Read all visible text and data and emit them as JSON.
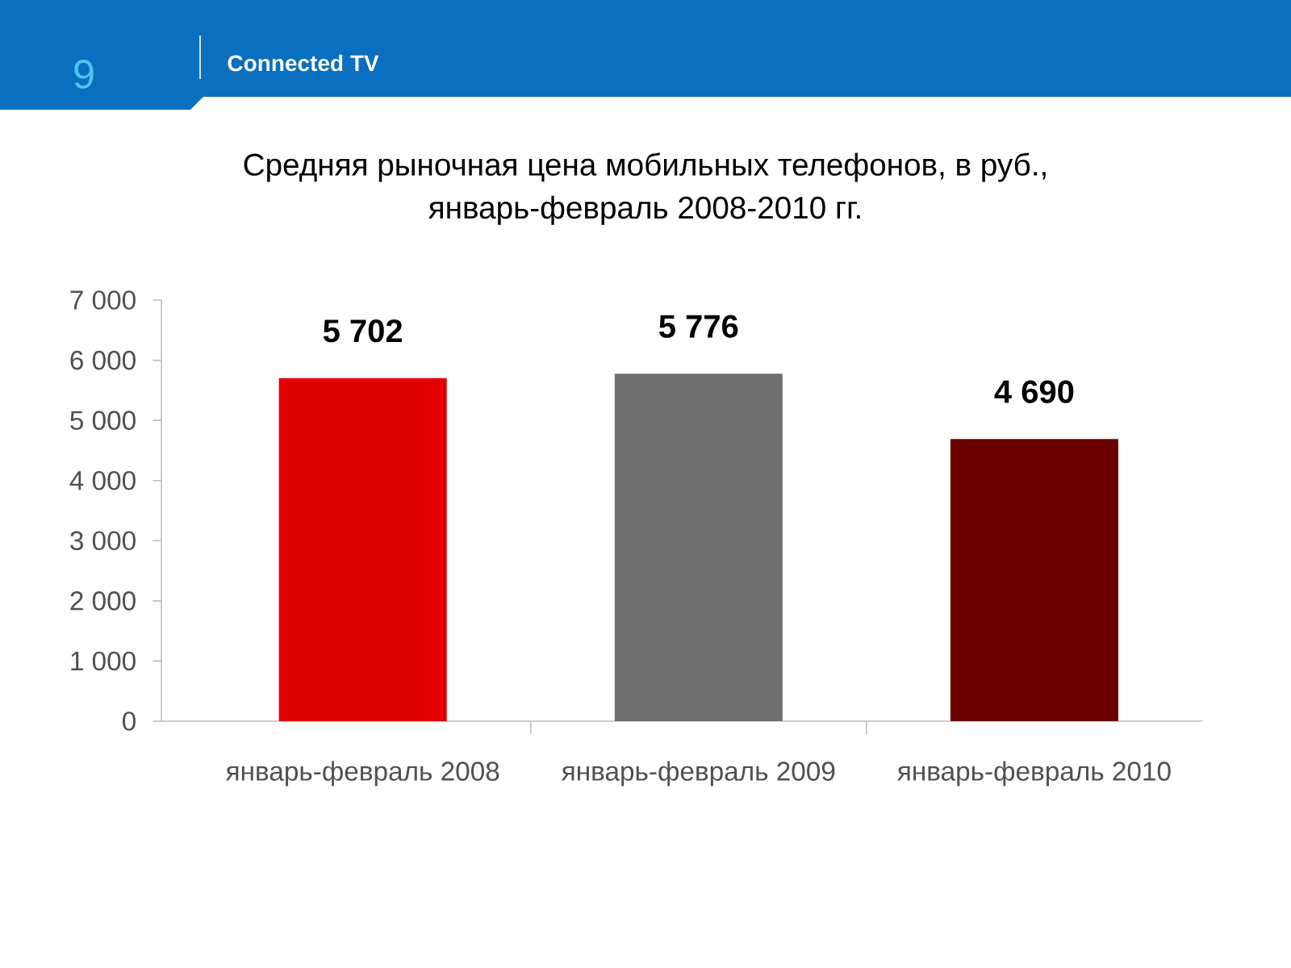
{
  "chart_data": {
    "type": "bar",
    "title": "Средняя рыночная цена мобильных телефонов, в руб., январь-февраль 2008-2010 гг.",
    "annotations": [
      "9",
      "Connected TV"
    ],
    "categories": [
      "январь-февраль 2008",
      "январь-февраль 2009",
      "январь-февраль 2010"
    ],
    "values": [
      5702,
      5776,
      4690
    ],
    "colors": [
      "#e00000",
      "#6e6e6e",
      "#6a0000"
    ],
    "value_labels": [
      "5 702",
      "5 776",
      "4 690"
    ],
    "ylim": [
      0,
      7000
    ],
    "yticks": [
      0,
      {
        "value": 1000,
        "label": "1 000"
      },
      {
        "value": 2000,
        "label": "2 000"
      },
      {
        "value": 3000,
        "label": "3 000"
      },
      {
        "value": 4000,
        "label": "4 000"
      },
      {
        "value": 5000,
        "label": "5 000"
      },
      {
        "value": 6000,
        "label": "6 000"
      },
      {
        "value": 7000,
        "label": "7 000"
      }
    ]
  }
}
